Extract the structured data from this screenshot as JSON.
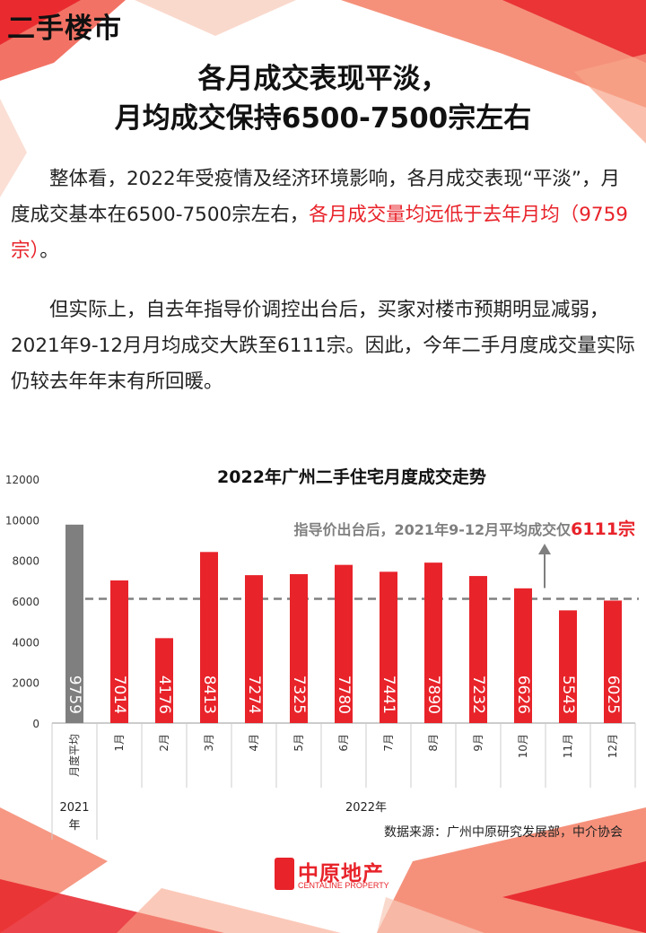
{
  "section_title": "二手楼市",
  "headline": {
    "line1": "各月成交表现平淡，",
    "line2": "月均成交保持6500-7500宗左右"
  },
  "paragraph1": {
    "text": "　　整体看，2022年受疫情及经济环境影响，各月成交表现“平淡”，月度成交基本在6500-7500宗左右，",
    "highlight": "各月成交量均远低于去年月均（9759宗）",
    "end": "。"
  },
  "paragraph2": "　　但实际上，自去年指导价调控出台后，买家对楼市预期明显减弱，2021年9-12月月均成交大跌至6111宗。因此，今年二手月度成交量实际仍较去年年末有所回暖。",
  "chart_data": {
    "type": "bar",
    "title": "2022年广州二手住宅月度成交走势",
    "categories": [
      "月度平均",
      "1月",
      "2月",
      "3月",
      "4月",
      "5月",
      "6月",
      "7月",
      "8月",
      "9月",
      "10月",
      "11月",
      "12月"
    ],
    "values": [
      9759,
      7014,
      4176,
      8413,
      7274,
      7325,
      7780,
      7441,
      7890,
      7232,
      6626,
      5543,
      6025
    ],
    "data_labels": [
      "9759",
      "7014",
      "4176",
      "8413",
      "7274",
      "7325",
      "7780",
      "7441",
      "7890",
      "7232",
      "6626",
      "5543",
      "6025"
    ],
    "ylim": [
      0,
      12000
    ],
    "yticks": [
      "0",
      "2000",
      "4000",
      "6000",
      "8000",
      "10000",
      "12000"
    ],
    "reference_line": {
      "value": 6111,
      "style": "dashed",
      "color": "#808080"
    },
    "annotation": {
      "prefix": "指导价出台后，2021年9-12月平均成交仅",
      "value": "6111宗"
    },
    "group_labels": {
      "avg_line1": "2021",
      "avg_line2": "年",
      "months": "2022年"
    },
    "colors": {
      "avg_bar": "#7f7f7f",
      "month_bar": "#e8232a",
      "annotation_value": "#e8232a",
      "reference": "#808080"
    },
    "grid": false
  },
  "source": "数据来源：广州中原研究发展部，中介协会",
  "logo": {
    "main": "中原地产",
    "sub": "CENTALINE PROPERTY"
  }
}
